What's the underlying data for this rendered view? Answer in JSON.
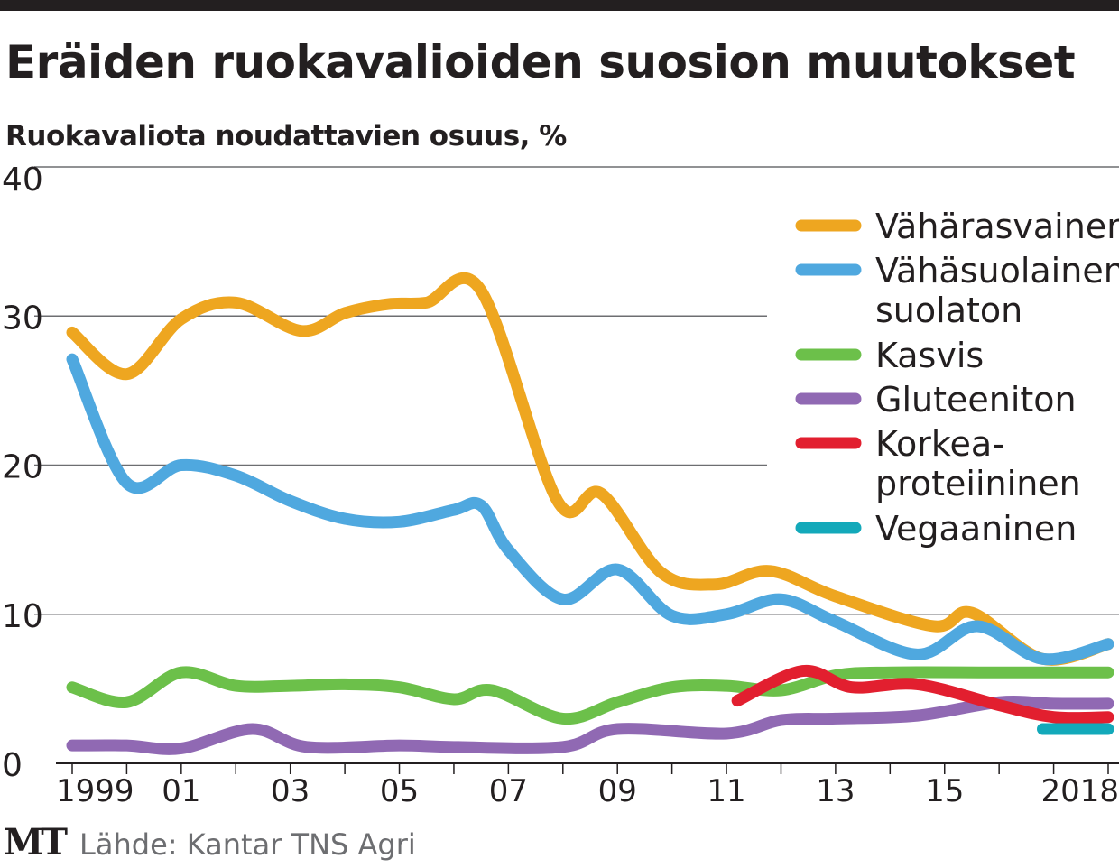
{
  "chart_data": {
    "type": "line",
    "title": "Eräiden ruokavalioiden suosion muutokset",
    "subtitle": "Ruokavaliota noudattavien osuus, %",
    "xlabel": "",
    "ylabel": "",
    "xlim": [
      1999,
      2018
    ],
    "ylim": [
      0,
      40
    ],
    "yticks": [
      "0",
      "10",
      "20",
      "30",
      "40"
    ],
    "xticks": [
      {
        "x": 1999,
        "label": "1999"
      },
      {
        "x": 2001,
        "label": "01"
      },
      {
        "x": 2003,
        "label": "03"
      },
      {
        "x": 2005,
        "label": "05"
      },
      {
        "x": 2007,
        "label": "07"
      },
      {
        "x": 2009,
        "label": "09"
      },
      {
        "x": 2011,
        "label": "11"
      },
      {
        "x": 2013,
        "label": "13"
      },
      {
        "x": 2015,
        "label": "15"
      },
      {
        "x": 2018,
        "label": "2018"
      }
    ],
    "grid": true,
    "legend_position": "top-right",
    "series": [
      {
        "name": "Vähärasvainen",
        "color": "#eea620",
        "x": [
          1999,
          2000,
          2001,
          2002,
          2003.2,
          2004,
          2004.8,
          2005.5,
          2006.5,
          2007.9,
          2008.7,
          2009.8,
          2010.8,
          2011.8,
          2013,
          2014.8,
          2015.5,
          2016.8,
          2018
        ],
        "y": [
          28.9,
          26.1,
          29.8,
          30.9,
          29.0,
          30.2,
          30.8,
          30.9,
          31.7,
          17.6,
          18.1,
          12.8,
          12.0,
          12.9,
          11.2,
          9.2,
          10.1,
          7.0,
          8.0
        ]
      },
      {
        "name": "Vähäsuolainen/ suolaton",
        "color": "#4fa8df",
        "x": [
          1999,
          2000,
          2001,
          2002,
          2003,
          2004,
          2005,
          2006,
          2006.5,
          2007,
          2008,
          2009,
          2010,
          2011,
          2012,
          2013,
          2014.5,
          2015.6,
          2016.8,
          2018
        ],
        "y": [
          27.1,
          18.8,
          20.0,
          19.3,
          17.6,
          16.4,
          16.2,
          17.0,
          17.3,
          14.3,
          11.0,
          13.0,
          9.9,
          10.0,
          11.0,
          9.5,
          7.3,
          9.2,
          7.0,
          8.0
        ]
      },
      {
        "name": "Kasvis",
        "color": "#6cc04a",
        "x": [
          1999,
          2000,
          2001,
          2002,
          2003,
          2004,
          2005,
          2006,
          2006.7,
          2008,
          2009,
          2010,
          2011,
          2012,
          2013,
          2014,
          2016,
          2018
        ],
        "y": [
          5.1,
          4.1,
          6.1,
          5.2,
          5.2,
          5.3,
          5.1,
          4.3,
          4.9,
          3.0,
          4.1,
          5.1,
          5.2,
          4.9,
          5.9,
          6.1,
          6.1,
          6.1
        ]
      },
      {
        "name": "Gluteeniton",
        "color": "#9069b3",
        "x": [
          1999,
          2000,
          2001,
          2002.3,
          2003.3,
          2005,
          2006,
          2008,
          2009,
          2011,
          2012,
          2013,
          2014.5,
          2016,
          2017,
          2018
        ],
        "y": [
          1.2,
          1.2,
          1.0,
          2.3,
          1.1,
          1.2,
          1.1,
          1.1,
          2.3,
          2.0,
          2.9,
          3.0,
          3.2,
          4.1,
          4.0,
          4.0
        ]
      },
      {
        "name": "Korkea- proteiininen",
        "color": "#e21f2f",
        "x": [
          2011.2,
          2012.4,
          2013.3,
          2014.5,
          2016,
          2017,
          2018
        ],
        "y": [
          4.2,
          6.2,
          5.1,
          5.3,
          3.9,
          3.1,
          3.1
        ]
      },
      {
        "name": "Vegaaninen",
        "color": "#13a9ba",
        "x": [
          2016.8,
          2018
        ],
        "y": [
          2.3,
          2.3
        ]
      }
    ],
    "legend": [
      {
        "line1": "Vähärasvainen",
        "line2": ""
      },
      {
        "line1": "Vähäsuolainen/",
        "line2": "suolaton"
      },
      {
        "line1": "Kasvis",
        "line2": ""
      },
      {
        "line1": "Gluteeniton",
        "line2": ""
      },
      {
        "line1": "Korkea-",
        "line2": "proteiininen"
      },
      {
        "line1": "Vegaaninen",
        "line2": ""
      }
    ]
  },
  "footer": {
    "logo": "MT",
    "source": "Lähde: Kantar TNS Agri"
  }
}
